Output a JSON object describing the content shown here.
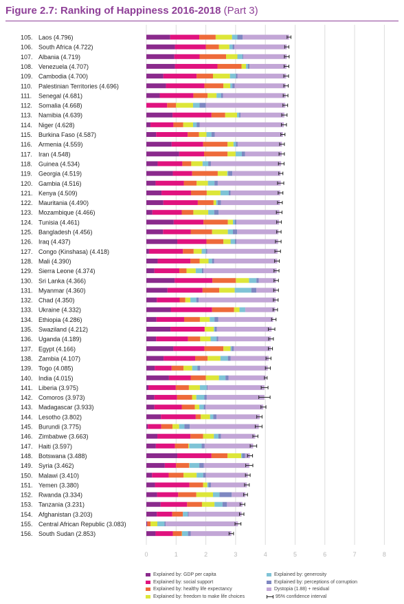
{
  "header": {
    "title_main": "Figure 2.7: Ranking of Happiness 2016-2018",
    "title_sub": "(Part 3)"
  },
  "colors": {
    "gdp": "#8a2a8c",
    "social": "#e0127e",
    "health": "#ee6a3a",
    "freedom": "#dde639",
    "generosity": "#7fc3d6",
    "corruption": "#7e87c1",
    "dystopia": "#c2a6d6",
    "ci": "#222222",
    "grid": "#dcdcdc",
    "tick": "#b9b9b9"
  },
  "legend": {
    "items": [
      {
        "key": "gdp",
        "label": "Explained by: GDP per capita"
      },
      {
        "key": "social",
        "label": "Explained by: social support"
      },
      {
        "key": "health",
        "label": "Explained by: healthy life expectancy"
      },
      {
        "key": "freedom",
        "label": "Explained by: freedom to make life choices"
      },
      {
        "key": "generosity",
        "label": "Explained by: generosity"
      },
      {
        "key": "corruption",
        "label": "Explained by: perceptions of corruption"
      },
      {
        "key": "dystopia",
        "label": "Dystopia (1.88) + residual"
      },
      {
        "key": "ci",
        "label": "95% confidence interval"
      }
    ]
  },
  "chart_data": {
    "type": "bar",
    "orientation": "horizontal",
    "stacked": true,
    "title": "Figure 2.7: Ranking of Happiness 2016-2018 (Part 3)",
    "xlim": [
      0,
      8
    ],
    "xticks": [
      "0",
      "1",
      "2",
      "3",
      "4",
      "5",
      "6",
      "7",
      "8"
    ],
    "grid": true,
    "legend_placement": "bottom",
    "series_order": [
      "gdp",
      "social",
      "health",
      "freedom",
      "generosity",
      "corruption",
      "dystopia"
    ],
    "rows": [
      {
        "rank": "105.",
        "label": "Laos (4.796)",
        "score": 4.796,
        "ci": [
          4.73,
          4.86
        ],
        "parts": [
          0.8,
          0.98,
          0.55,
          0.55,
          0.18,
          0.18,
          1.56
        ]
      },
      {
        "rank": "106.",
        "label": "South Africa (4.722)",
        "score": 4.722,
        "ci": [
          4.65,
          4.79
        ],
        "parts": [
          0.96,
          1.04,
          0.44,
          0.35,
          0.11,
          0.06,
          1.76
        ]
      },
      {
        "rank": "107.",
        "label": "Albania (4.719)",
        "score": 4.719,
        "ci": [
          4.64,
          4.8
        ],
        "parts": [
          0.94,
          0.85,
          0.89,
          0.38,
          0.17,
          0.03,
          1.46
        ]
      },
      {
        "rank": "108.",
        "label": "Venezuela (4.707)",
        "score": 4.707,
        "ci": [
          4.63,
          4.79
        ],
        "parts": [
          0.96,
          1.43,
          0.81,
          0.15,
          0.06,
          0.06,
          1.24
        ]
      },
      {
        "rank": "109.",
        "label": "Cambodia (4.700)",
        "score": 4.7,
        "ci": [
          4.62,
          4.78
        ],
        "parts": [
          0.57,
          1.12,
          0.55,
          0.57,
          0.2,
          0.05,
          1.64
        ]
      },
      {
        "rank": "110.",
        "label": "Palestinian Territories (4.696)",
        "score": 4.696,
        "ci": [
          4.62,
          4.77
        ],
        "parts": [
          0.66,
          1.29,
          0.64,
          0.23,
          0.07,
          0.08,
          1.71
        ]
      },
      {
        "rank": "111.",
        "label": "Senegal (4.681)",
        "score": 4.681,
        "ci": [
          4.6,
          4.76
        ],
        "parts": [
          0.45,
          1.13,
          0.48,
          0.3,
          0.15,
          0.07,
          2.1
        ]
      },
      {
        "rank": "112.",
        "label": "Somalia (4.668)",
        "score": 4.668,
        "ci": [
          4.59,
          4.75
        ],
        "parts": [
          0.0,
          0.7,
          0.3,
          0.57,
          0.22,
          0.21,
          2.67
        ]
      },
      {
        "rank": "113.",
        "label": "Namibia (4.639)",
        "score": 4.639,
        "ci": [
          4.55,
          4.73
        ],
        "parts": [
          0.88,
          1.31,
          0.46,
          0.4,
          0.07,
          0.05,
          1.47
        ]
      },
      {
        "rank": "114.",
        "label": "Niger (4.628)",
        "score": 4.628,
        "ci": [
          4.54,
          4.71
        ],
        "parts": [
          0.14,
          0.77,
          0.33,
          0.33,
          0.12,
          0.1,
          2.83
        ]
      },
      {
        "rank": "115.",
        "label": "Burkina Faso (4.587)",
        "score": 4.587,
        "ci": [
          4.52,
          4.66
        ],
        "parts": [
          0.33,
          1.06,
          0.38,
          0.25,
          0.17,
          0.11,
          2.29
        ]
      },
      {
        "rank": "116.",
        "label": "Armenia (4.559)",
        "score": 4.559,
        "ci": [
          4.48,
          4.64
        ],
        "parts": [
          0.85,
          1.06,
          0.82,
          0.2,
          0.08,
          0.06,
          1.49
        ]
      },
      {
        "rank": "117.",
        "label": "Iran (4.548)",
        "score": 4.548,
        "ci": [
          4.46,
          4.64
        ],
        "parts": [
          1.1,
          0.84,
          0.79,
          0.27,
          0.21,
          0.11,
          1.23
        ]
      },
      {
        "rank": "118.",
        "label": "Guinea (4.534)",
        "score": 4.534,
        "ci": [
          4.44,
          4.63
        ],
        "parts": [
          0.38,
          0.83,
          0.3,
          0.38,
          0.19,
          0.09,
          2.36
        ]
      },
      {
        "rank": "119.",
        "label": "Georgia (4.519)",
        "score": 4.519,
        "ci": [
          4.45,
          4.59
        ],
        "parts": [
          0.89,
          0.65,
          0.86,
          0.32,
          0.03,
          0.14,
          1.62
        ]
      },
      {
        "rank": "120.",
        "label": "Gambia (4.516)",
        "score": 4.516,
        "ci": [
          4.41,
          4.62
        ],
        "parts": [
          0.31,
          0.95,
          0.43,
          0.38,
          0.22,
          0.11,
          2.12
        ]
      },
      {
        "rank": "121.",
        "label": "Kenya (4.509)",
        "score": 4.509,
        "ci": [
          4.43,
          4.59
        ],
        "parts": [
          0.51,
          0.99,
          0.53,
          0.46,
          0.28,
          0.06,
          1.67
        ]
      },
      {
        "rank": "122.",
        "label": "Mauritania (4.490)",
        "score": 4.49,
        "ci": [
          4.41,
          4.57
        ],
        "parts": [
          0.57,
          1.16,
          0.53,
          0.09,
          0.05,
          0.11,
          1.98
        ]
      },
      {
        "rank": "123.",
        "label": "Mozambique (4.466)",
        "score": 4.466,
        "ci": [
          4.37,
          4.56
        ],
        "parts": [
          0.2,
          0.99,
          0.39,
          0.5,
          0.2,
          0.15,
          2.04
        ]
      },
      {
        "rank": "124.",
        "label": "Tunisia (4.461)",
        "score": 4.461,
        "ci": [
          4.38,
          4.54
        ],
        "parts": [
          0.92,
          1.0,
          0.82,
          0.17,
          0.06,
          0.06,
          1.43
        ]
      },
      {
        "rank": "125.",
        "label": "Bangladesh (4.456)",
        "score": 4.456,
        "ci": [
          4.38,
          4.53
        ],
        "parts": [
          0.56,
          0.93,
          0.72,
          0.53,
          0.17,
          0.14,
          1.39
        ]
      },
      {
        "rank": "126.",
        "label": "Iraq (4.437)",
        "score": 4.437,
        "ci": [
          4.34,
          4.53
        ],
        "parts": [
          1.04,
          0.98,
          0.57,
          0.24,
          0.15,
          0.05,
          1.4
        ]
      },
      {
        "rank": "127.",
        "label": "Congo (Kinshasa) (4.418)",
        "score": 4.418,
        "ci": [
          4.32,
          4.51
        ],
        "parts": [
          0.09,
          1.14,
          0.36,
          0.27,
          0.14,
          0.05,
          2.36
        ]
      },
      {
        "rank": "128.",
        "label": "Mali (4.390)",
        "score": 4.39,
        "ci": [
          4.31,
          4.47
        ],
        "parts": [
          0.38,
          1.1,
          0.31,
          0.3,
          0.12,
          0.07,
          2.12
        ]
      },
      {
        "rank": "129.",
        "label": "Sierra Leone (4.374)",
        "score": 4.374,
        "ci": [
          4.29,
          4.46
        ],
        "parts": [
          0.27,
          0.84,
          0.24,
          0.31,
          0.21,
          0.05,
          2.46
        ]
      },
      {
        "rank": "130.",
        "label": "Sri Lanka (4.366)",
        "score": 4.366,
        "ci": [
          4.29,
          4.44
        ],
        "parts": [
          0.95,
          1.27,
          0.79,
          0.44,
          0.25,
          0.08,
          0.58
        ]
      },
      {
        "rank": "131.",
        "label": "Myanmar (4.360)",
        "score": 4.36,
        "ci": [
          4.28,
          4.44
        ],
        "parts": [
          0.71,
          1.18,
          0.56,
          0.52,
          0.56,
          0.17,
          0.66
        ]
      },
      {
        "rank": "132.",
        "label": "Chad (4.350)",
        "score": 4.35,
        "ci": [
          4.27,
          4.43
        ],
        "parts": [
          0.35,
          0.77,
          0.19,
          0.17,
          0.2,
          0.08,
          2.59
        ]
      },
      {
        "rank": "133.",
        "label": "Ukraine (4.332)",
        "score": 4.332,
        "ci": [
          4.26,
          4.41
        ],
        "parts": [
          0.82,
          1.39,
          0.74,
          0.18,
          0.19,
          0.01,
          1.0
        ]
      },
      {
        "rank": "134.",
        "label": "Ethiopia (4.286)",
        "score": 4.286,
        "ci": [
          4.21,
          4.36
        ],
        "parts": [
          0.34,
          0.93,
          0.53,
          0.33,
          0.16,
          0.13,
          1.84
        ]
      },
      {
        "rank": "135.",
        "label": "Swaziland (4.212)",
        "score": 4.212,
        "ci": [
          4.1,
          4.32
        ],
        "parts": [
          0.81,
          1.15,
          0.0,
          0.31,
          0.03,
          0.07,
          1.84
        ]
      },
      {
        "rank": "136.",
        "label": "Uganda (4.189)",
        "score": 4.189,
        "ci": [
          4.11,
          4.27
        ],
        "parts": [
          0.33,
          1.07,
          0.41,
          0.35,
          0.2,
          0.06,
          1.77
        ]
      },
      {
        "rank": "137.",
        "label": "Egypt (4.166)",
        "score": 4.166,
        "ci": [
          4.1,
          4.24
        ],
        "parts": [
          0.91,
          1.04,
          0.64,
          0.24,
          0.04,
          0.07,
          1.24
        ]
      },
      {
        "rank": "138.",
        "label": "Zambia (4.107)",
        "score": 4.107,
        "ci": [
          4.02,
          4.19
        ],
        "parts": [
          0.58,
          1.06,
          0.42,
          0.43,
          0.25,
          0.09,
          1.28
        ]
      },
      {
        "rank": "139.",
        "label": "Togo (4.085)",
        "score": 4.085,
        "ci": [
          4.0,
          4.17
        ],
        "parts": [
          0.28,
          0.57,
          0.4,
          0.29,
          0.18,
          0.09,
          2.27
        ]
      },
      {
        "rank": "140.",
        "label": "India (4.015)",
        "score": 4.015,
        "ci": [
          3.97,
          4.06
        ],
        "parts": [
          0.76,
          0.73,
          0.51,
          0.44,
          0.22,
          0.1,
          1.25
        ]
      },
      {
        "rank": "141.",
        "label": "Liberia (3.975)",
        "score": 3.975,
        "ci": [
          3.86,
          4.09
        ],
        "parts": [
          0.07,
          0.92,
          0.44,
          0.37,
          0.23,
          0.03,
          1.91
        ]
      },
      {
        "rank": "142.",
        "label": "Comoros (3.973)",
        "score": 3.973,
        "ci": [
          3.78,
          4.16
        ],
        "parts": [
          0.27,
          0.76,
          0.51,
          0.14,
          0.27,
          0.08,
          1.94
        ]
      },
      {
        "rank": "143.",
        "label": "Madagascar (3.933)",
        "score": 3.933,
        "ci": [
          3.85,
          4.02
        ],
        "parts": [
          0.27,
          0.92,
          0.44,
          0.15,
          0.15,
          0.06,
          1.94
        ]
      },
      {
        "rank": "144.",
        "label": "Lesotho (3.802)",
        "score": 3.802,
        "ci": [
          3.71,
          3.89
        ],
        "parts": [
          0.49,
          1.17,
          0.17,
          0.31,
          0.11,
          0.11,
          1.45
        ]
      },
      {
        "rank": "145.",
        "label": "Burundi (3.775)",
        "score": 3.775,
        "ci": [
          3.66,
          3.89
        ],
        "parts": [
          0.05,
          0.45,
          0.38,
          0.22,
          0.18,
          0.18,
          2.32
        ]
      },
      {
        "rank": "146.",
        "label": "Zimbabwe (3.663)",
        "score": 3.663,
        "ci": [
          3.58,
          3.75
        ],
        "parts": [
          0.37,
          1.11,
          0.43,
          0.36,
          0.15,
          0.09,
          1.15
        ]
      },
      {
        "rank": "147.",
        "label": "Haiti (3.597)",
        "score": 3.597,
        "ci": [
          3.49,
          3.71
        ],
        "parts": [
          0.32,
          0.64,
          0.45,
          0.03,
          0.42,
          0.1,
          1.63
        ]
      },
      {
        "rank": "148.",
        "label": "Botswana (3.488)",
        "score": 3.488,
        "ci": [
          3.4,
          3.57
        ],
        "parts": [
          1.04,
          1.15,
          0.54,
          0.46,
          0.03,
          0.1,
          0.16
        ]
      },
      {
        "rank": "149.",
        "label": "Syria (3.462)",
        "score": 3.462,
        "ci": [
          3.34,
          3.58
        ],
        "parts": [
          0.62,
          0.38,
          0.44,
          0.01,
          0.33,
          0.15,
          1.53
        ]
      },
      {
        "rank": "150.",
        "label": "Malawi (3.410)",
        "score": 3.41,
        "ci": [
          3.33,
          3.49
        ],
        "parts": [
          0.19,
          0.56,
          0.5,
          0.44,
          0.22,
          0.09,
          1.41
        ]
      },
      {
        "rank": "151.",
        "label": "Yemen (3.380)",
        "score": 3.38,
        "ci": [
          3.3,
          3.46
        ],
        "parts": [
          0.29,
          1.16,
          0.46,
          0.14,
          0.04,
          0.08,
          1.21
        ]
      },
      {
        "rank": "152.",
        "label": "Rwanda (3.334)",
        "score": 3.334,
        "ci": [
          3.27,
          3.4
        ],
        "parts": [
          0.36,
          0.71,
          0.61,
          0.56,
          0.22,
          0.41,
          0.46
        ]
      },
      {
        "rank": "153.",
        "label": "Tanzania (3.231)",
        "score": 3.231,
        "ci": [
          3.15,
          3.31
        ],
        "parts": [
          0.48,
          0.89,
          0.5,
          0.42,
          0.27,
          0.15,
          0.52
        ]
      },
      {
        "rank": "154.",
        "label": "Afghanistan (3.203)",
        "score": 3.203,
        "ci": [
          3.13,
          3.28
        ],
        "parts": [
          0.35,
          0.52,
          0.36,
          0.0,
          0.16,
          0.03,
          1.78
        ]
      },
      {
        "rank": "155.",
        "label": "Central African Republic (3.083)",
        "score": 3.083,
        "ci": [
          2.98,
          3.18
        ],
        "parts": [
          0.03,
          0.0,
          0.11,
          0.23,
          0.24,
          0.04,
          2.43
        ]
      },
      {
        "rank": "156.",
        "label": "South Sudan (2.853)",
        "score": 2.853,
        "ci": [
          2.78,
          2.93
        ],
        "parts": [
          0.31,
          0.58,
          0.3,
          0.01,
          0.2,
          0.09,
          1.37
        ]
      }
    ]
  }
}
